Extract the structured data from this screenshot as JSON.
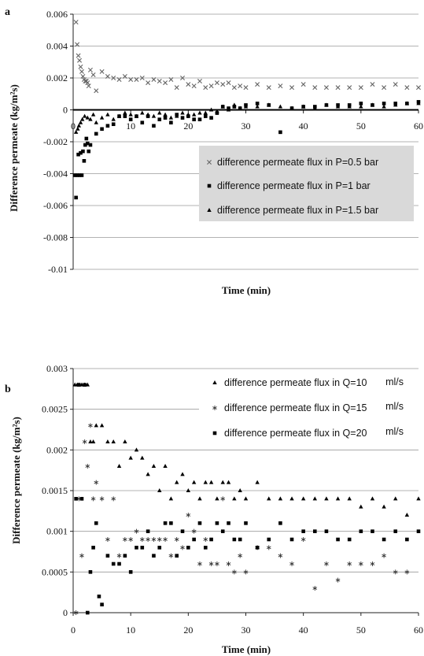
{
  "chart_data": [
    {
      "panel_label": "a",
      "type": "scatter",
      "xlabel": "Time (min)",
      "ylabel": "Difference permeate (kg/m²s)",
      "xlim": [
        0,
        60
      ],
      "ylim": [
        -0.01,
        0.006
      ],
      "x_ticks": [
        "0",
        "10",
        "20",
        "30",
        "40",
        "50",
        "60"
      ],
      "y_ticks": [
        "-0.01",
        "-0.008",
        "-0.006",
        "-0.004",
        "-0.002",
        "0",
        "0.002",
        "0.004",
        "0.006"
      ],
      "grid": "horizontal",
      "legend": "right",
      "series": [
        {
          "name": "difference permeate flux in P=0.5 bar",
          "marker": "x",
          "x": [
            0.5,
            0.7,
            0.9,
            1.1,
            1.3,
            1.5,
            1.7,
            1.9,
            2.1,
            2.3,
            2.5,
            2.7,
            3,
            3.5,
            4,
            5,
            6,
            7,
            8,
            9,
            10,
            11,
            12,
            13,
            14,
            15,
            16,
            17,
            18,
            19,
            20,
            21,
            22,
            23,
            24,
            25,
            26,
            27,
            28,
            29,
            30,
            32,
            34,
            36,
            38,
            40,
            42,
            44,
            46,
            48,
            50,
            52,
            54,
            56,
            58,
            60
          ],
          "y": [
            0.0055,
            0.0041,
            0.0034,
            0.0031,
            0.0027,
            0.0024,
            0.0021,
            0.0019,
            0.0018,
            0.0018,
            0.0017,
            0.0015,
            0.0025,
            0.0022,
            0.0012,
            0.0024,
            0.0021,
            0.002,
            0.0019,
            0.0021,
            0.0019,
            0.0019,
            0.002,
            0.0017,
            0.0019,
            0.0018,
            0.0017,
            0.0019,
            0.0014,
            0.002,
            0.0016,
            0.0015,
            0.0018,
            0.0014,
            0.0015,
            0.0017,
            0.0016,
            0.0017,
            0.0014,
            0.0015,
            0.0014,
            0.0016,
            0.0014,
            0.0015,
            0.0014,
            0.0016,
            0.0014,
            0.0014,
            0.0014,
            0.0014,
            0.0014,
            0.0016,
            0.0014,
            0.0016,
            0.0014,
            0.0014
          ]
        },
        {
          "name": "difference permeate flux in P=1 bar",
          "marker": "square",
          "x": [
            0.3,
            0.5,
            0.7,
            0.9,
            1.1,
            1.3,
            1.5,
            1.7,
            1.9,
            2.1,
            2.3,
            2.5,
            2.7,
            3,
            4,
            5,
            6,
            7,
            8,
            9,
            10,
            11,
            12,
            13,
            14,
            15,
            16,
            17,
            18,
            19,
            20,
            21,
            22,
            23,
            24,
            25,
            26,
            27,
            28,
            29,
            30,
            32,
            34,
            36,
            38,
            40,
            42,
            44,
            46,
            48,
            50,
            52,
            54,
            56,
            58,
            60
          ],
          "y": [
            -0.0041,
            -0.0055,
            -0.0041,
            -0.0028,
            -0.0041,
            -0.0027,
            -0.0041,
            -0.0026,
            -0.0032,
            -0.0022,
            -0.0018,
            -0.0021,
            -0.0026,
            -0.0022,
            -0.0015,
            -0.0012,
            -0.001,
            -0.0009,
            -0.0004,
            -0.0004,
            -0.0006,
            -0.0004,
            -0.0008,
            -0.0004,
            -0.001,
            -0.0006,
            -0.0005,
            -0.0008,
            -0.0003,
            -0.0005,
            -0.0004,
            -0.0006,
            -0.0006,
            -0.0004,
            -0.0005,
            -0.0002,
            0.0002,
            0.0001,
            0.0002,
            0.0001,
            0.0003,
            0.0004,
            0.0003,
            -0.0014,
            0.0001,
            0.0002,
            0.0002,
            0.0003,
            0.0003,
            0.0003,
            0.0004,
            0.0003,
            0.0004,
            0.0004,
            0.0004,
            0.0005
          ]
        },
        {
          "name": "difference permeate flux in P=1.5 bar",
          "marker": "triangle",
          "x": [
            0.5,
            0.8,
            1,
            1.3,
            1.6,
            2,
            2.5,
            3,
            3.5,
            4,
            5,
            6,
            7,
            8,
            9,
            10,
            11,
            12,
            13,
            14,
            15,
            16,
            17,
            18,
            19,
            20,
            21,
            22,
            23,
            24,
            25,
            26,
            27,
            28,
            29,
            30,
            32,
            34,
            36,
            38,
            40,
            42,
            44,
            46,
            48,
            50,
            52,
            54,
            56,
            58,
            60
          ],
          "y": [
            -0.0014,
            -0.0012,
            -0.001,
            -0.0008,
            -0.0006,
            -0.0004,
            -0.0005,
            -0.0006,
            -0.0003,
            -0.0008,
            -0.0005,
            -0.0003,
            -0.0006,
            -0.0004,
            -0.0002,
            -0.0003,
            -0.0004,
            -0.0002,
            -0.0003,
            -0.0004,
            -0.0002,
            -0.0003,
            -0.0005,
            -0.0004,
            -0.0002,
            -0.0003,
            -0.0003,
            -0.0002,
            -0.0002,
            0.0,
            -0.0001,
            0.0002,
            0.0,
            0.0003,
            0.0001,
            0.0002,
            0.0002,
            0.0003,
            0.0002,
            0.0001,
            0.0002,
            0.0001,
            0.0003,
            0.0002,
            0.0002,
            0.0002,
            0.0003,
            0.0002,
            0.0003,
            0.0004,
            0.0004
          ]
        }
      ]
    },
    {
      "panel_label": "b",
      "type": "scatter",
      "xlabel": "Time (min)",
      "ylabel": "Difference permeate (kg/m²s)",
      "xlim": [
        0,
        60
      ],
      "ylim": [
        0,
        0.003
      ],
      "x_ticks": [
        "0",
        "10",
        "20",
        "30",
        "40",
        "50",
        "60"
      ],
      "y_ticks": [
        "0",
        "0.0005",
        "0.001",
        "0.0015",
        "0.002",
        "0.0025",
        "0.003"
      ],
      "grid": "horizontal",
      "legend": "top-right",
      "series": [
        {
          "name": "difference permeate flux in Q=10",
          "unit": "ml/s",
          "marker": "triangle",
          "x": [
            0.3,
            0.7,
            1,
            1.5,
            2,
            2.5,
            3,
            3.5,
            4,
            5,
            6,
            7,
            8,
            9,
            10,
            11,
            12,
            13,
            14,
            15,
            16,
            17,
            18,
            19,
            20,
            21,
            22,
            23,
            24,
            25,
            26,
            27,
            28,
            29,
            30,
            32,
            34,
            36,
            38,
            40,
            42,
            44,
            46,
            48,
            50,
            52,
            54,
            56,
            58,
            60
          ],
          "y": [
            0.0028,
            0.0028,
            0.0028,
            0.0028,
            0.0028,
            0.0028,
            0.0021,
            0.0021,
            0.0023,
            0.0023,
            0.0021,
            0.0021,
            0.0018,
            0.0021,
            0.0019,
            0.002,
            0.0019,
            0.0017,
            0.0018,
            0.0015,
            0.0018,
            0.0014,
            0.0016,
            0.0017,
            0.0015,
            0.0016,
            0.0014,
            0.0016,
            0.0016,
            0.0014,
            0.0016,
            0.0016,
            0.0014,
            0.0015,
            0.0014,
            0.0016,
            0.0014,
            0.0014,
            0.0014,
            0.0014,
            0.0014,
            0.0014,
            0.0014,
            0.0014,
            0.0013,
            0.0014,
            0.0013,
            0.0014,
            0.0012,
            0.0014
          ]
        },
        {
          "name": "difference permeate flux in Q=15",
          "unit": "ml/s",
          "marker": "asterisk",
          "x": [
            0.5,
            1,
            1.5,
            2,
            2.5,
            3,
            3.5,
            4,
            5,
            6,
            7,
            8,
            9,
            10,
            11,
            12,
            13,
            14,
            15,
            16,
            17,
            18,
            19,
            20,
            21,
            22,
            23,
            24,
            25,
            26,
            27,
            28,
            29,
            30,
            32,
            34,
            36,
            38,
            40,
            42,
            44,
            46,
            48,
            50,
            52,
            54,
            56,
            58
          ],
          "y": [
            0.0,
            0.0014,
            0.0007,
            0.0021,
            0.0018,
            0.0023,
            0.0014,
            0.0016,
            0.0014,
            0.0009,
            0.0014,
            0.0007,
            0.0009,
            0.0009,
            0.001,
            0.0009,
            0.0009,
            0.0009,
            0.0009,
            0.0009,
            0.0007,
            0.0009,
            0.0008,
            0.0012,
            0.001,
            0.0006,
            0.0009,
            0.0006,
            0.0006,
            0.0014,
            0.0006,
            0.0005,
            0.0007,
            0.0005,
            0.0008,
            0.0008,
            0.0007,
            0.0006,
            0.0009,
            0.0003,
            0.0006,
            0.0004,
            0.0006,
            0.0006,
            0.0006,
            0.0007,
            0.0005,
            0.0005
          ]
        },
        {
          "name": "difference permeate flux in Q=20",
          "unit": "ml/s",
          "marker": "square",
          "x": [
            0.5,
            1,
            1.5,
            2,
            2.5,
            3,
            3.5,
            4,
            4.5,
            5,
            6,
            7,
            8,
            9,
            10,
            11,
            12,
            13,
            14,
            15,
            16,
            17,
            18,
            19,
            20,
            21,
            22,
            23,
            24,
            25,
            26,
            27,
            28,
            29,
            30,
            32,
            34,
            36,
            38,
            40,
            42,
            44,
            46,
            48,
            50,
            52,
            54,
            56,
            58,
            60
          ],
          "y": [
            0.0014,
            0.0028,
            0.0014,
            0.0028,
            0.0,
            0.0005,
            0.0008,
            0.0011,
            0.0002,
            0.0001,
            0.0007,
            0.0006,
            0.0006,
            0.0007,
            0.0005,
            0.0008,
            0.0008,
            0.001,
            0.0007,
            0.0008,
            0.0011,
            0.0011,
            0.0007,
            0.001,
            0.0008,
            0.0009,
            0.0011,
            0.0008,
            0.0009,
            0.0011,
            0.001,
            0.0011,
            0.0009,
            0.0009,
            0.0011,
            0.0008,
            0.0009,
            0.0011,
            0.0009,
            0.001,
            0.001,
            0.001,
            0.0009,
            0.0009,
            0.001,
            0.001,
            0.0009,
            0.001,
            0.0009,
            0.001
          ]
        }
      ]
    }
  ]
}
